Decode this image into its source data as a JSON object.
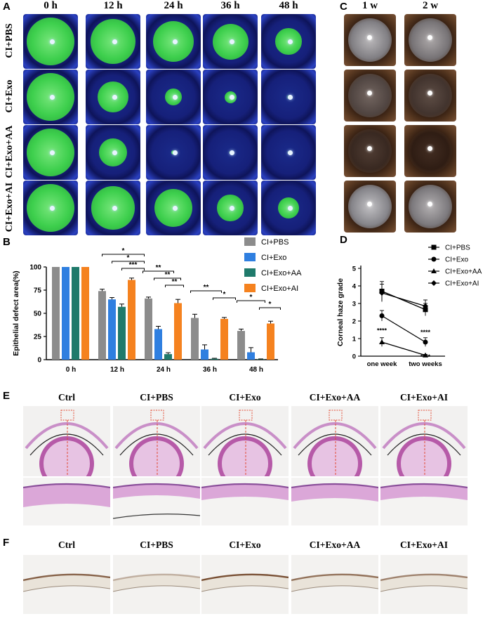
{
  "panel_labels": {
    "a": "A",
    "b": "B",
    "c": "C",
    "d": "D",
    "e": "E",
    "f": "F"
  },
  "panel_a": {
    "columns": [
      "0 h",
      "12 h",
      "24 h",
      "36 h",
      "48 h"
    ],
    "rows": [
      "CI+PBS",
      "CI+Exo",
      "CI+Exo+AA",
      "CI+Exo+AI"
    ]
  },
  "panel_c": {
    "columns": [
      "1 w",
      "2 w"
    ]
  },
  "chart_data": [
    {
      "type": "bar",
      "panel": "B",
      "ylabel": "Epithelial defect area(%)",
      "categories": [
        "0 h",
        "12 h",
        "24 h",
        "36 h",
        "48 h"
      ],
      "ylim": [
        0,
        100
      ],
      "yticks": [
        0,
        25,
        50,
        75,
        100
      ],
      "legend": "top-right",
      "series": [
        {
          "name": "CI+PBS",
          "color": "#8c8c8c",
          "values": [
            100,
            74,
            66,
            45,
            31
          ],
          "errors": [
            0,
            2,
            1.5,
            4,
            2
          ]
        },
        {
          "name": "CI+Exo",
          "color": "#2f7fe0",
          "values": [
            100,
            65,
            33,
            11,
            8
          ],
          "errors": [
            0,
            2,
            3,
            5,
            5
          ]
        },
        {
          "name": "CI+Exo+AA",
          "color": "#1f7a6b",
          "values": [
            100,
            57,
            6,
            1,
            0.5
          ],
          "errors": [
            0,
            3,
            1.5,
            0.5,
            0.3
          ]
        },
        {
          "name": "CI+Exo+AI",
          "color": "#f5821f",
          "values": [
            100,
            86,
            61,
            44,
            39
          ],
          "errors": [
            0,
            2,
            4,
            1.5,
            2.5
          ]
        }
      ],
      "annotations": {
        "12 h": [
          "*",
          "*",
          "***"
        ],
        "24 h": [
          "**",
          "**",
          "**"
        ],
        "36 h": [
          "**",
          "*"
        ],
        "48 h": [
          "*",
          "*"
        ]
      }
    },
    {
      "type": "line",
      "panel": "D",
      "ylabel": "Corneal haze grade",
      "x": [
        "one week",
        "two weeks"
      ],
      "ylim": [
        0,
        5
      ],
      "yticks": [
        0,
        1,
        2,
        3,
        4,
        5
      ],
      "legend": "right",
      "series": [
        {
          "name": "CI+PBS",
          "marker": "square",
          "values": [
            3.7,
            2.65
          ],
          "errors": [
            0.55,
            0.35
          ]
        },
        {
          "name": "CI+Exo",
          "marker": "circle",
          "values": [
            2.3,
            0.8
          ],
          "errors": [
            0.3,
            0.25
          ]
        },
        {
          "name": "CI+Exo+AA",
          "marker": "triangle-up",
          "values": [
            0.8,
            0.05
          ],
          "errors": [
            0.25,
            0.05
          ]
        },
        {
          "name": "CI+Exo+AI",
          "marker": "diamond",
          "values": [
            3.6,
            2.85
          ],
          "errors": [
            0.5,
            0.35
          ]
        }
      ],
      "annotations": {
        "one week": [
          "****"
        ],
        "two weeks": [
          "****",
          "****"
        ]
      }
    }
  ],
  "panel_e": {
    "columns": [
      "Ctrl",
      "CI+PBS",
      "CI+Exo",
      "CI+Exo+AA",
      "CI+Exo+AI"
    ]
  },
  "panel_f": {
    "columns": [
      "Ctrl",
      "CI+PBS",
      "CI+Exo",
      "CI+Exo+AA",
      "CI+Exo+AI"
    ]
  }
}
